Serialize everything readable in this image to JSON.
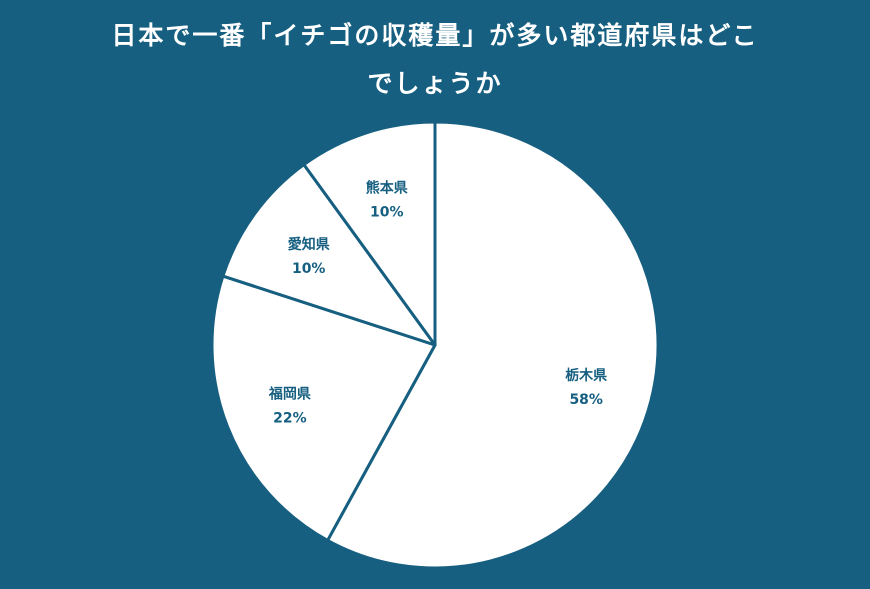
{
  "chart_data": {
    "type": "pie",
    "title_line1": "日本で一番「イチゴの収穫量」が多い都道府県はどこ",
    "title_line2": "でしょうか",
    "categories": [
      "栃木県",
      "福岡県",
      "愛知県",
      "熊本県"
    ],
    "values": [
      58,
      22,
      10,
      10
    ],
    "value_labels": [
      "58%",
      "22%",
      "10%",
      "10%"
    ],
    "start_angle_deg": 0,
    "direction": "clockwise",
    "colors": {
      "background": "#165f80",
      "slice_fill": "#ffffff",
      "slice_stroke": "#165f80",
      "label_text": "#165f80",
      "title_text": "#ffffff"
    }
  }
}
